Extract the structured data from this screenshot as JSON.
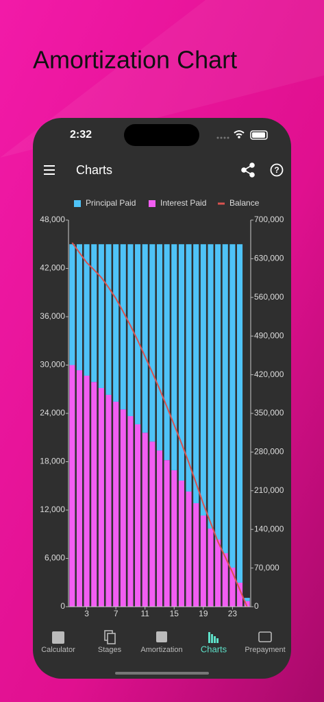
{
  "header": {
    "title": "Amortization Chart"
  },
  "status_bar": {
    "time": "2:32"
  },
  "app_bar": {
    "title": "Charts"
  },
  "chart_data": {
    "type": "bar",
    "stacked": true,
    "x": [
      1,
      2,
      3,
      4,
      5,
      6,
      7,
      8,
      9,
      10,
      11,
      12,
      13,
      14,
      15,
      16,
      17,
      18,
      19,
      20,
      21,
      22,
      23,
      24,
      25
    ],
    "xlim": [
      0.5,
      25.5
    ],
    "xticks": [
      3,
      7,
      11,
      15,
      19,
      23
    ],
    "ylim": [
      0,
      48000
    ],
    "yticks": [
      0,
      {
        "value": 6000,
        "label": "6,000"
      },
      {
        "value": 12000,
        "label": "12,000"
      },
      {
        "value": 18000,
        "label": "18,000"
      },
      {
        "value": 24000,
        "label": "24,000"
      },
      {
        "value": 30000,
        "label": "30,000"
      },
      {
        "value": 36000,
        "label": "36,000"
      },
      {
        "value": 42000,
        "label": "42,000"
      },
      {
        "value": 48000,
        "label": "48,000"
      }
    ],
    "y2lim": [
      0,
      700000
    ],
    "y2ticks": [
      0,
      {
        "value": 70000,
        "label": "70,000"
      },
      {
        "value": 140000,
        "label": "140,000"
      },
      {
        "value": 210000,
        "label": "210,000"
      },
      {
        "value": 280000,
        "label": "280,000"
      },
      {
        "value": 350000,
        "label": "350,000"
      },
      {
        "value": 420000,
        "label": "420,000"
      },
      {
        "value": 490000,
        "label": "490,000"
      },
      {
        "value": 560000,
        "label": "560,000"
      },
      {
        "value": 630000,
        "label": "630,000"
      },
      {
        "value": 700000,
        "label": "700,000"
      }
    ],
    "legend": "top",
    "series": [
      {
        "name": "Principal Paid",
        "color": "#4fc3f7",
        "values": [
          15000,
          15640,
          16320,
          17100,
          17850,
          18700,
          19550,
          20500,
          21340,
          22360,
          23400,
          24500,
          25600,
          26800,
          28060,
          29340,
          30700,
          32150,
          33680,
          35300,
          36660,
          38360,
          40150,
          42020,
          400
        ]
      },
      {
        "name": "Interest Paid",
        "color": "#f25ef2",
        "values": [
          30000,
          29360,
          28680,
          27900,
          27150,
          26300,
          25450,
          24500,
          23660,
          22640,
          21600,
          20500,
          19400,
          18200,
          16940,
          15660,
          14300,
          12850,
          11320,
          9700,
          8340,
          6640,
          4850,
          2980,
          700
        ]
      },
      {
        "name": "Balance",
        "type": "line",
        "axis": "y2",
        "color": "#d9534f",
        "values": [
          659000,
          641000,
          623000,
          610000,
          596000,
          578000,
          558000,
          534000,
          509000,
          482000,
          453000,
          424000,
          394000,
          362000,
          329000,
          296000,
          261000,
          224000,
          186000,
          152000,
          118000,
          90000,
          62000,
          31000,
          0
        ]
      }
    ]
  },
  "nav": {
    "active": 3,
    "items": [
      {
        "label": "Calculator"
      },
      {
        "label": "Stages"
      },
      {
        "label": "Amortization"
      },
      {
        "label": "Charts"
      },
      {
        "label": "Prepayment"
      }
    ]
  }
}
